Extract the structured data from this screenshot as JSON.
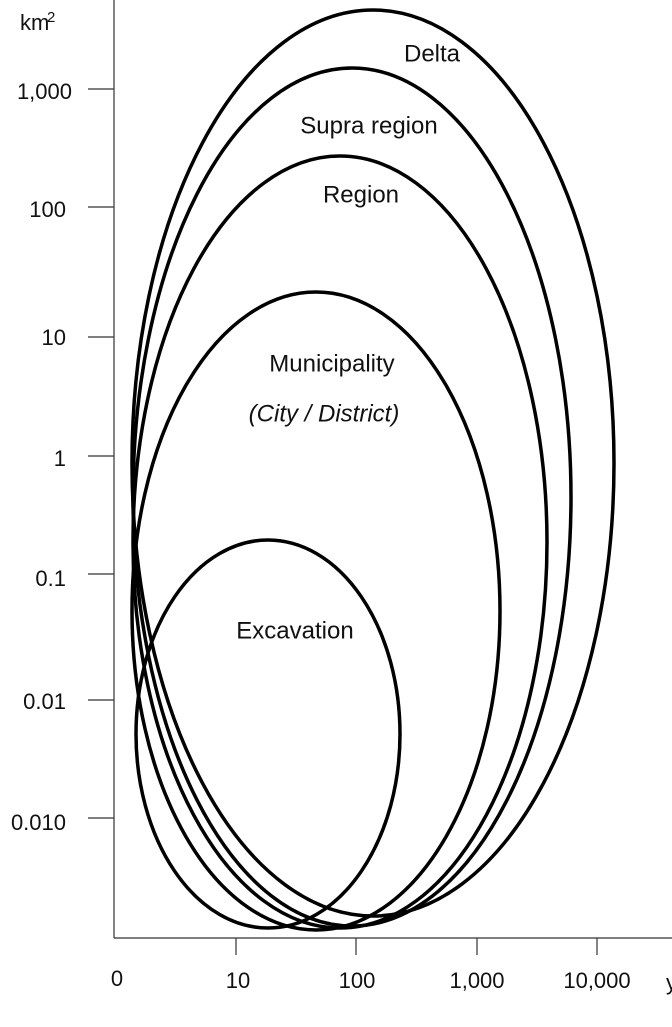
{
  "y_axis": {
    "unit": "km",
    "unit_exponent": "2",
    "tick_labels": [
      "1,000",
      "100",
      "10",
      "1",
      "0.1",
      "0.01",
      "0.010"
    ]
  },
  "x_axis": {
    "unit": "y",
    "tick_labels": [
      "0",
      "10",
      "100",
      "1,000",
      "10,000"
    ]
  },
  "regions": [
    {
      "label": "Delta"
    },
    {
      "label": "Supra region"
    },
    {
      "label": "Region"
    },
    {
      "label": "Municipality",
      "sublabel": "(City / District)"
    },
    {
      "label": "Excavation"
    }
  ]
}
